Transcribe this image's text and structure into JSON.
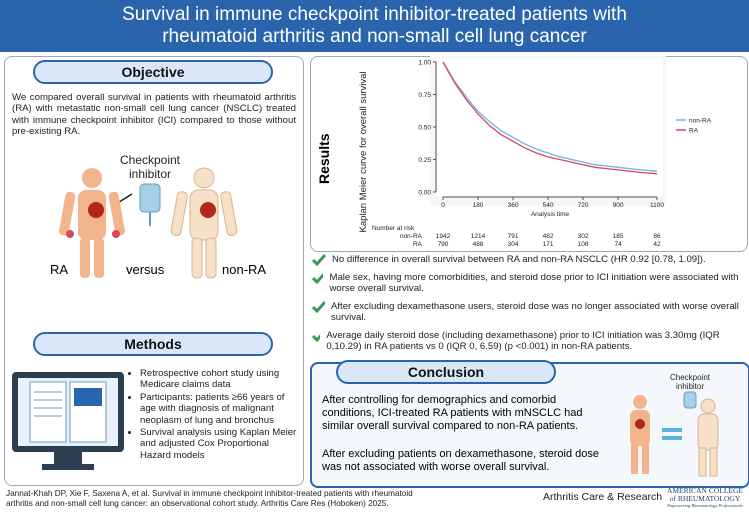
{
  "header": {
    "title_line1": "Survival in immune checkpoint inhibitor-treated patients with",
    "title_line2": "rheumatoid arthritis and non-small cell lung cancer"
  },
  "objective": {
    "heading": "Objective",
    "text": "We compared overall survival in patients with rheumatoid arthritis (RA) with metastatic non-small cell lung cancer (NSCLC) treated with immune checkpoint inhibitor (ICI) compared to those without pre-existing RA.",
    "figure_label_line1": "Checkpoint",
    "figure_label_line2": "inhibitor",
    "label_ra": "RA",
    "label_versus": "versus",
    "label_nonra": "non-RA"
  },
  "methods": {
    "heading": "Methods",
    "bullets": [
      "Retrospective cohort study using Medicare claims data",
      "Participants: patients ≥66 years of age with diagnosis of malignant neoplasm of lung and bronchus",
      "Survival analysis using Kaplan Meier and adjusted Cox Proportional Hazard models"
    ]
  },
  "results": {
    "heading": "Results",
    "bullets": [
      "No difference in overall survival between RA and non-RA NSCLC (HR 0.92 [0.78, 1.09]).",
      "Male sex, having more comorbidities, and steroid dose prior to ICI initiation were associated with worse overall survival.",
      "After excluding dexamethasone users, steroid dose was no longer associated with worse overall survival.",
      "Average daily steroid dose (including dexamethasone) prior to ICI initiation was 3.30mg (IQR 0,10.29) in RA patients vs 0 (IQR 0, 6.59) (p <0.001) in non-RA patients."
    ]
  },
  "chart": {
    "type": "line",
    "ylabel": "Kaplan Meier curve for overall survival",
    "xlabel": "Analysis time",
    "x": [
      0,
      60,
      120,
      180,
      240,
      300,
      360,
      420,
      480,
      540,
      600,
      660,
      720,
      780,
      840,
      900,
      960,
      1020,
      1100
    ],
    "series": [
      {
        "name": "non-RA",
        "color": "#6fb3e0",
        "values": [
          1,
          0.85,
          0.73,
          0.62,
          0.54,
          0.47,
          0.42,
          0.37,
          0.33,
          0.3,
          0.27,
          0.25,
          0.23,
          0.21,
          0.2,
          0.19,
          0.18,
          0.17,
          0.16
        ]
      },
      {
        "name": "RA",
        "color": "#d9465f",
        "values": [
          1,
          0.84,
          0.71,
          0.6,
          0.51,
          0.44,
          0.39,
          0.34,
          0.3,
          0.27,
          0.25,
          0.23,
          0.21,
          0.19,
          0.18,
          0.17,
          0.16,
          0.15,
          0.14
        ]
      }
    ],
    "xlim": [
      0,
      1100
    ],
    "xticks": [
      0,
      180,
      360,
      540,
      720,
      900,
      1100
    ],
    "ylim": [
      0,
      1
    ],
    "yticks": [
      {
        "value": 0,
        "label": "0.00"
      },
      {
        "value": 0.25,
        "label": "0.25"
      },
      {
        "value": 0.5,
        "label": "0.50"
      },
      {
        "value": 0.75,
        "label": "0.75"
      },
      {
        "value": 1,
        "label": "1.00"
      }
    ],
    "risk_table": {
      "title": "Number at risk",
      "rows": [
        {
          "name": "non-RA",
          "values": [
            1942,
            1214,
            791,
            482,
            302,
            185,
            86
          ]
        },
        {
          "name": "RA",
          "values": [
            790,
            488,
            304,
            171,
            108,
            74,
            42
          ]
        }
      ]
    }
  },
  "conclusion": {
    "heading": "Conclusion",
    "para1": "After controlling for demographics and comorbid conditions, ICI-treated RA patients with mNSCLC had similar overall survival compared to non-RA patients.",
    "para2": "After excluding patients on dexamethasone, steroid dose was not associated with worse overall survival.",
    "figure_label_line1": "Checkpoint",
    "figure_label_line2": "inhibitor"
  },
  "footer": {
    "citation_line1": "Jannat-Khah DP, Xie F, Saxena A, et al. Survival in immune checkpoint inhibitor-treated patients with rheumatoid",
    "citation_line2": "arthritis and non-small cell lung cancer: an observational cohort study. Arthritis Care Res (Hoboken) 2025.",
    "journal": "Arthritis Care & Research",
    "logo_line1": "AMERICAN COLLEGE",
    "logo_line2": "of RHEUMATOLOGY",
    "logo_line3": "Empowering Rheumatology Professionals"
  }
}
